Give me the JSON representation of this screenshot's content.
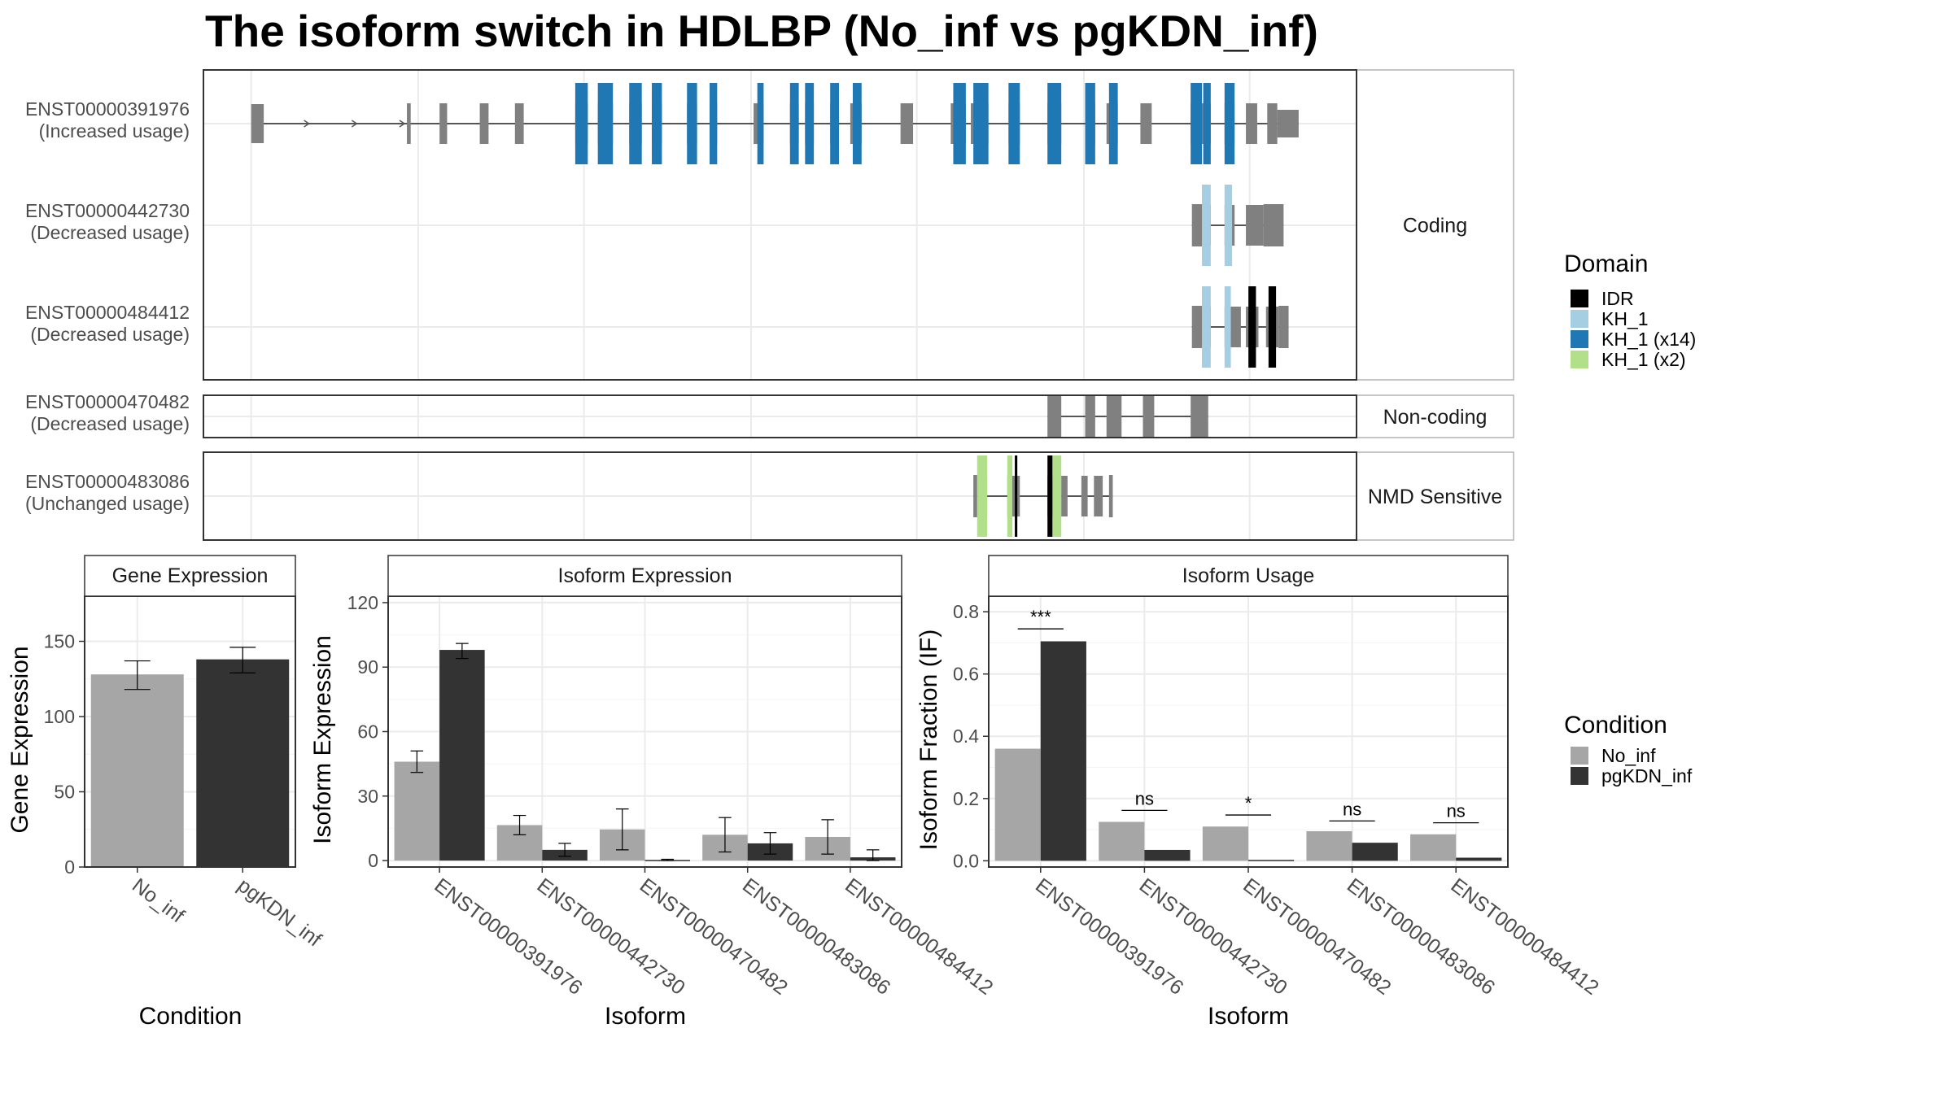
{
  "title": "The isoform switch in HDLBP (No_inf vs pgKDN_inf)",
  "colors": {
    "no_inf": "#a6a6a6",
    "pgkdn_inf": "#333333",
    "exon": "#808080",
    "intron": "#555555",
    "IDR": "#000000",
    "KH_1": "#a6cee3",
    "KH_1 (x14)": "#1f78b4",
    "KH_1 (x2)": "#b2df8a"
  },
  "isoform_panels": [
    {
      "category": "Coding",
      "tracks": [
        {
          "id": "ENST00000391976",
          "usage": "(Increased usage)",
          "exons": [
            [
              200,
              210
            ],
            [
              324,
              327
            ],
            [
              350,
              356
            ],
            [
              382,
              389
            ],
            [
              410,
              417
            ],
            [
              458,
              468
            ],
            [
              476,
              488
            ],
            [
              501,
              511
            ],
            [
              519,
              527
            ],
            [
              547,
              555
            ],
            [
              565,
              571
            ],
            [
              600,
              608
            ],
            [
              629,
              636
            ],
            [
              641,
              648
            ],
            [
              661,
              668
            ],
            [
              677,
              686
            ],
            [
              717,
              727
            ],
            [
              757,
              769
            ],
            [
              773,
              787
            ],
            [
              803,
              812
            ],
            [
              834,
              845
            ],
            [
              864,
              872
            ],
            [
              881,
              890
            ],
            [
              908,
              917
            ],
            [
              948,
              964
            ],
            [
              975,
              983
            ],
            [
              992,
              1001
            ],
            [
              1009,
              1017
            ],
            [
              1017,
              1034
            ]
          ],
          "thin": [
            [
              324,
              327
            ],
            [
              350,
              356
            ],
            [
              1009,
              1017
            ]
          ],
          "utr_tail": [
            1017,
            1034
          ],
          "domains": [
            [
              458,
              468,
              "KH_1 (x14)"
            ],
            [
              476,
              488,
              "KH_1 (x14)"
            ],
            [
              501,
              511,
              "KH_1 (x14)"
            ],
            [
              519,
              527,
              "KH_1 (x14)"
            ],
            [
              547,
              555,
              "KH_1 (x14)"
            ],
            [
              565,
              571,
              "KH_1 (x14)"
            ],
            [
              603,
              608,
              "KH_1 (x14)"
            ],
            [
              629,
              636,
              "KH_1 (x14)"
            ],
            [
              641,
              648,
              "KH_1 (x14)"
            ],
            [
              661,
              668,
              "KH_1 (x14)"
            ],
            [
              679,
              686,
              "KH_1 (x14)"
            ],
            [
              759,
              769,
              "KH_1 (x14)"
            ],
            [
              775,
              787,
              "KH_1 (x14)"
            ],
            [
              803,
              812,
              "KH_1 (x14)"
            ],
            [
              834,
              845,
              "KH_1 (x14)"
            ],
            [
              864,
              872,
              "KH_1 (x14)"
            ],
            [
              883,
              890,
              "KH_1 (x14)"
            ],
            [
              948,
              957,
              "KH_1 (x14)"
            ],
            [
              958,
              964,
              "KH_1 (x14)"
            ],
            [
              975,
              983,
              "KH_1 (x14)"
            ]
          ],
          "arrows": [
            246,
            284,
            322
          ]
        },
        {
          "id": "ENST00000442730",
          "usage": "(Decreased usage)",
          "exons": [
            [
              949,
              957
            ],
            [
              957,
              964
            ],
            [
              975,
              983
            ],
            [
              992,
              1006
            ],
            [
              1006,
              1022
            ]
          ],
          "domains": [
            [
              957,
              964,
              "KH_1"
            ],
            [
              975,
              981,
              "KH_1"
            ]
          ]
        },
        {
          "id": "ENST00000484412",
          "usage": "(Decreased usage)",
          "exons": [
            [
              949,
              957
            ],
            [
              957,
              964
            ],
            [
              975,
              988
            ],
            [
              992,
              1002
            ],
            [
              1008,
              1018
            ],
            [
              1018,
              1026
            ]
          ],
          "domains": [
            [
              957,
              964,
              "KH_1"
            ],
            [
              975,
              980,
              "KH_1"
            ],
            [
              994,
              1000,
              "IDR"
            ],
            [
              1010,
              1016,
              "IDR"
            ]
          ]
        }
      ]
    },
    {
      "category": "Non-coding",
      "tracks": [
        {
          "id": "ENST00000470482",
          "usage": "(Decreased usage)",
          "exons": [
            [
              834,
              845
            ],
            [
              864,
              872
            ],
            [
              881,
              893
            ],
            [
              910,
              919
            ],
            [
              948,
              962
            ]
          ],
          "domains": []
        }
      ]
    },
    {
      "category": "NMD Sensitive",
      "tracks": [
        {
          "id": "ENST00000483086",
          "usage": "(Unchanged usage)",
          "exons": [
            [
              775,
              778
            ],
            [
              778,
              786
            ],
            [
              802,
              812
            ],
            [
              834,
              845
            ],
            [
              845,
              850
            ],
            [
              861,
              866
            ],
            [
              871,
              878
            ],
            [
              883,
              886
            ]
          ],
          "domains": [
            [
              778,
              786,
              "KH_1 (x2)"
            ],
            [
              802,
              806,
              "KH_1 (x2)"
            ],
            [
              808,
              810,
              "IDR"
            ],
            [
              834,
              838,
              "IDR"
            ],
            [
              838,
              845,
              "KH_1 (x2)"
            ]
          ]
        }
      ]
    }
  ],
  "legends": {
    "domain": {
      "title": "Domain",
      "items": [
        "IDR",
        "KH_1",
        "KH_1 (x14)",
        "KH_1 (x2)"
      ]
    },
    "condition": {
      "title": "Condition",
      "items": [
        "No_inf",
        "pgKDN_inf"
      ]
    }
  },
  "chart_data": [
    {
      "type": "bar",
      "panel_title": "Gene Expression",
      "xlabel": "Condition",
      "ylabel": "Gene Expression",
      "categories": [
        "No_inf",
        "pgKDN_inf"
      ],
      "series": [
        {
          "values": [
            128,
            138
          ],
          "err": [
            [
              118,
              137
            ],
            [
              129,
              146
            ]
          ]
        }
      ],
      "ylim": [
        0,
        180
      ],
      "yticks": [
        0,
        50,
        100,
        150
      ]
    },
    {
      "type": "bar",
      "panel_title": "Isoform Expression",
      "xlabel": "Isoform",
      "ylabel": "Isoform Expression",
      "categories": [
        "ENST00000391976",
        "ENST00000442730",
        "ENST00000470482",
        "ENST00000483086",
        "ENST00000484412"
      ],
      "series": [
        {
          "name": "No_inf",
          "values": [
            46,
            16.5,
            14.5,
            12,
            11
          ],
          "err": [
            [
              41,
              51
            ],
            [
              12,
              21
            ],
            [
              5,
              24
            ],
            [
              4,
              20
            ],
            [
              3,
              19
            ]
          ]
        },
        {
          "name": "pgKDN_inf",
          "values": [
            98,
            5,
            0.3,
            8,
            1.5
          ],
          "err": [
            [
              94,
              101
            ],
            [
              2,
              8
            ],
            [
              0,
              0.6
            ],
            [
              3,
              13
            ],
            [
              0,
              5
            ]
          ]
        }
      ],
      "ylim": [
        -3,
        123
      ],
      "yticks": [
        0,
        30,
        60,
        90,
        120
      ]
    },
    {
      "type": "bar",
      "panel_title": "Isoform Usage",
      "xlabel": "Isoform",
      "ylabel": "Isoform Fraction (IF)",
      "categories": [
        "ENST00000391976",
        "ENST00000442730",
        "ENST00000470482",
        "ENST00000483086",
        "ENST00000484412"
      ],
      "series": [
        {
          "name": "No_inf",
          "values": [
            0.36,
            0.125,
            0.11,
            0.095,
            0.085
          ]
        },
        {
          "name": "pgKDN_inf",
          "values": [
            0.705,
            0.035,
            0.003,
            0.058,
            0.01
          ]
        }
      ],
      "significance": [
        {
          "label": "***",
          "y": 0.745
        },
        {
          "label": "ns",
          "y": 0.162
        },
        {
          "label": "*",
          "y": 0.147
        },
        {
          "label": "ns",
          "y": 0.128
        },
        {
          "label": "ns",
          "y": 0.122
        }
      ],
      "ylim": [
        -0.02,
        0.85
      ],
      "yticks": [
        0.0,
        0.2,
        0.4,
        0.6,
        0.8
      ],
      "ytick_labels": [
        "0.0",
        "0.2",
        "0.4",
        "0.6",
        "0.8"
      ]
    }
  ]
}
